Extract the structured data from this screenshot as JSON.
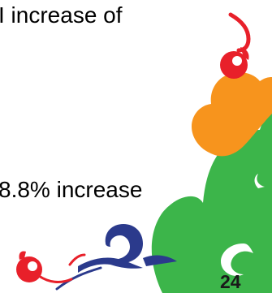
{
  "slide": {
    "text_lines": [
      "I increase of",
      "8.8% increase"
    ],
    "page_number": "24"
  },
  "decoration": {
    "name": "cloud-swirl-ornament",
    "colors": {
      "red": "#e8202a",
      "orange": "#f7941d",
      "green": "#3cb54a",
      "navy": "#2b3a8c"
    }
  }
}
